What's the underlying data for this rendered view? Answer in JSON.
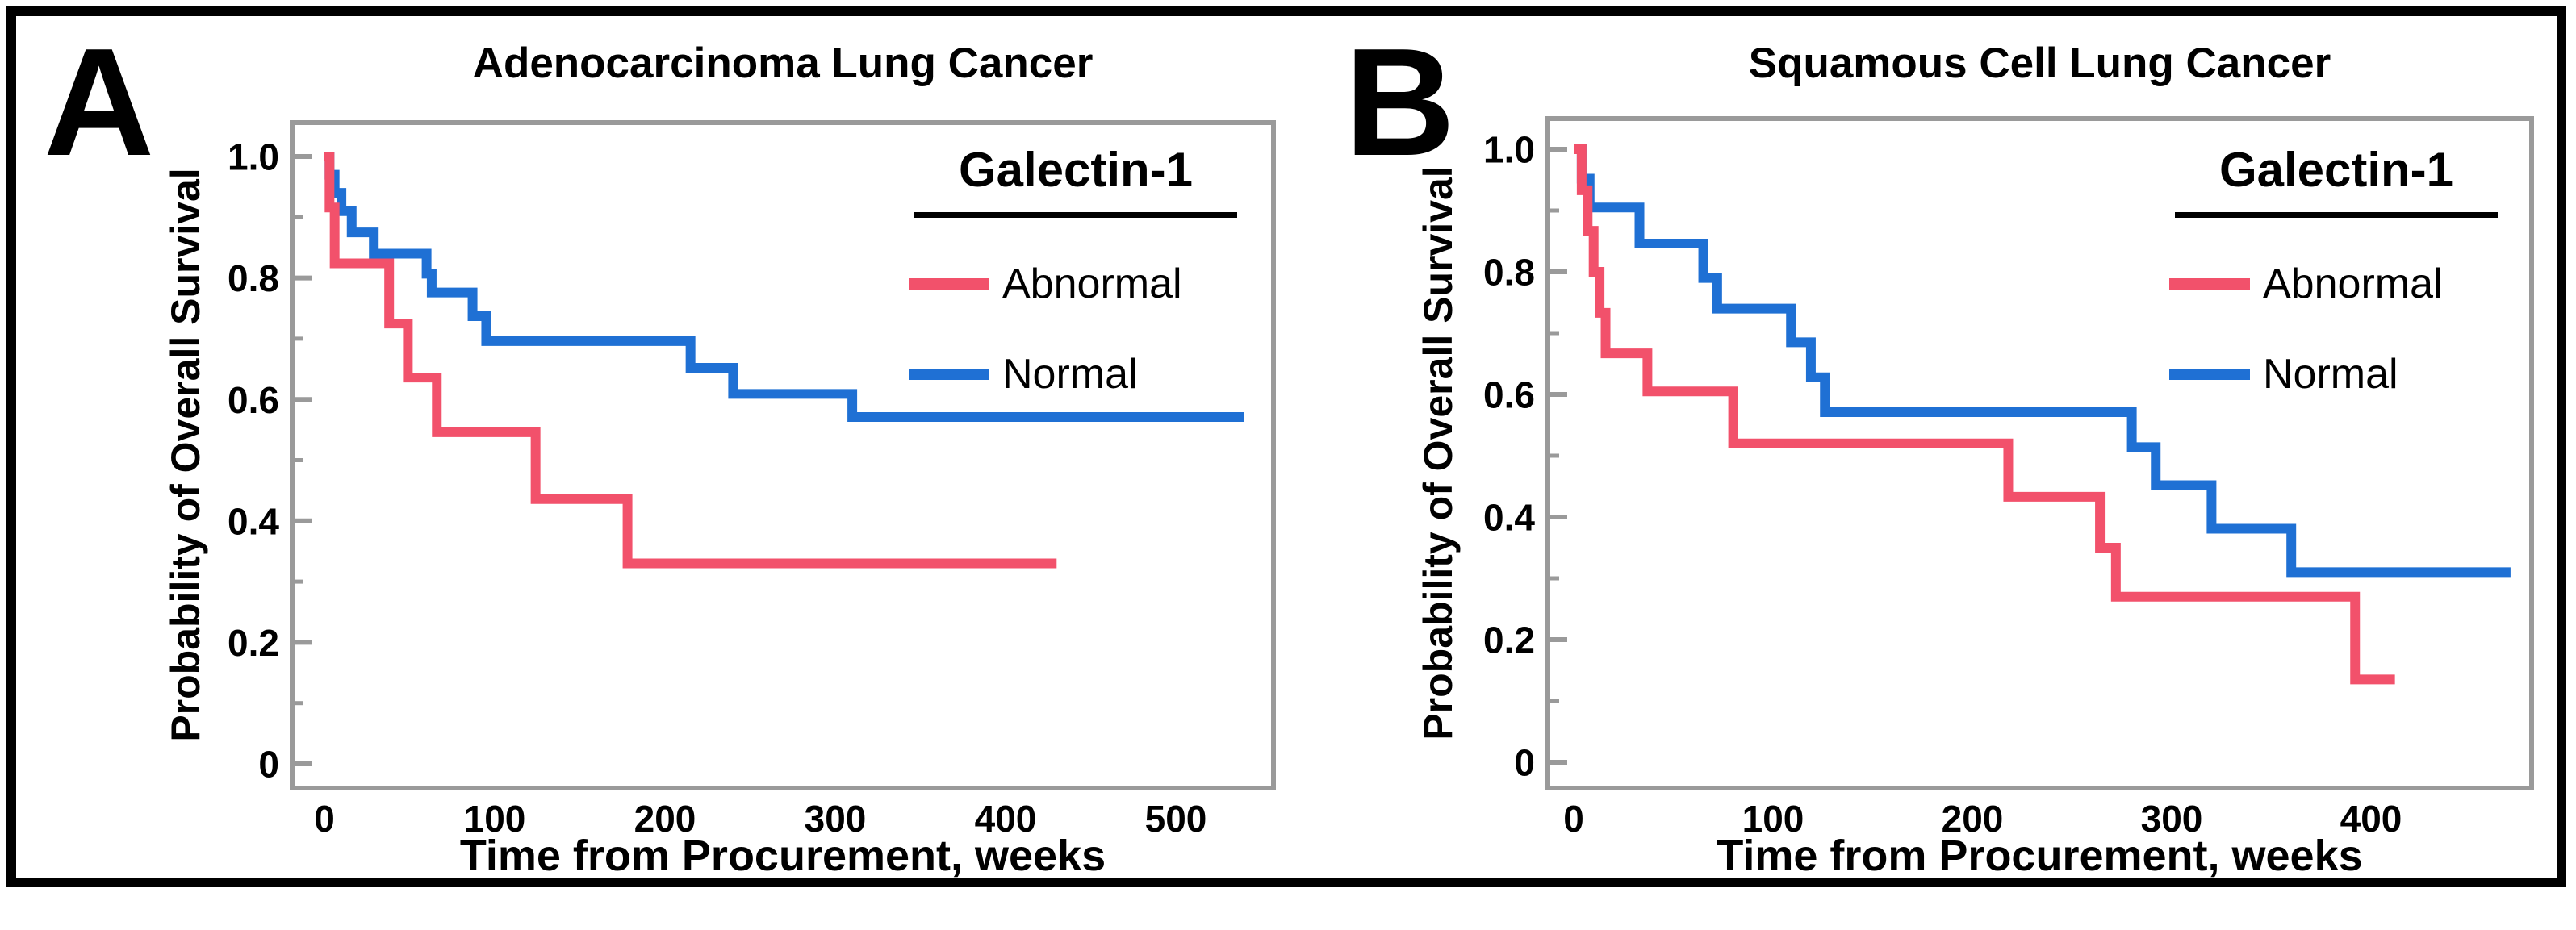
{
  "figure": {
    "colors": {
      "abnormal": "#F2516B",
      "normal": "#1F70D4",
      "frame": "#9A9A9A",
      "text": "#000000"
    }
  },
  "panels": [
    {
      "letter": "A",
      "title": "Adenocarcinoma Lung Cancer",
      "x_axis": {
        "label": "Time from Procurement, weeks"
      },
      "y_axis": {
        "label": "Probability of Overall Survival"
      },
      "legend": {
        "title": "Galectin-1",
        "items": [
          {
            "label": "Abnormal",
            "color_key": "abnormal"
          },
          {
            "label": "Normal",
            "color_key": "normal"
          }
        ]
      }
    },
    {
      "letter": "B",
      "title": "Squamous Cell Lung Cancer",
      "x_axis": {
        "label": "Time from Procurement, weeks"
      },
      "y_axis": {
        "label": "Probability of Overall Survival"
      },
      "legend": {
        "title": "Galectin-1",
        "items": [
          {
            "label": "Abnormal",
            "color_key": "abnormal"
          },
          {
            "label": "Normal",
            "color_key": "normal"
          }
        ]
      }
    }
  ],
  "chart_data": [
    {
      "type": "line",
      "subtype": "kaplan-meier-step",
      "title": "Adenocarcinoma Lung Cancer",
      "xlabel": "Time from Procurement, weeks",
      "ylabel": "Probability of Overall Survival",
      "xlim": [
        0,
        566
      ],
      "ylim": [
        -0.04,
        1.04
      ],
      "x_ticks": [
        0,
        100,
        200,
        300,
        400,
        500
      ],
      "y_ticks": [
        1.0,
        0.8,
        0.6,
        0.4,
        0.2,
        0
      ],
      "y_tick_labels": [
        "1.0",
        "0.8",
        "0.6",
        "0.4",
        "0.2",
        "0"
      ],
      "y_minor_ticks": [
        0.9,
        0.7,
        0.5,
        0.3,
        0.1
      ],
      "grid": false,
      "legend_position": "upper right",
      "series": [
        {
          "name": "Normal",
          "color_key": "normal",
          "steps": [
            [
              0,
              1.0
            ],
            [
              3,
              0.97
            ],
            [
              6,
              0.94
            ],
            [
              10,
              0.91
            ],
            [
              16,
              0.875
            ],
            [
              29,
              0.84
            ],
            [
              60,
              0.807
            ],
            [
              63,
              0.776
            ],
            [
              87,
              0.737
            ],
            [
              95,
              0.696
            ],
            [
              215,
              0.652
            ],
            [
              240,
              0.609
            ],
            [
              310,
              0.571
            ]
          ],
          "end_x": 540
        },
        {
          "name": "Abnormal",
          "color_key": "abnormal",
          "steps": [
            [
              0,
              1.0
            ],
            [
              3,
              0.916
            ],
            [
              6,
              0.824
            ],
            [
              38,
              0.725
            ],
            [
              49,
              0.636
            ],
            [
              66,
              0.546
            ],
            [
              124,
              0.436
            ],
            [
              178,
              0.33
            ]
          ],
          "end_x": 430
        }
      ]
    },
    {
      "type": "line",
      "subtype": "kaplan-meier-step",
      "title": "Squamous Cell Lung Cancer",
      "xlabel": "Time from Procurement, weeks",
      "ylabel": "Probability of Overall Survival",
      "xlim": [
        0,
        480
      ],
      "ylim": [
        -0.04,
        1.04
      ],
      "x_ticks": [
        0,
        100,
        200,
        300,
        400
      ],
      "y_ticks": [
        1.0,
        0.8,
        0.6,
        0.4,
        0.2,
        0
      ],
      "y_tick_labels": [
        "1.0",
        "0.8",
        "0.6",
        "0.4",
        "0.2",
        "0"
      ],
      "y_minor_ticks": [
        0.9,
        0.7,
        0.5,
        0.3,
        0.1
      ],
      "grid": false,
      "legend_position": "upper right",
      "series": [
        {
          "name": "Normal",
          "color_key": "normal",
          "steps": [
            [
              0,
              1.0
            ],
            [
              4,
              0.952
            ],
            [
              8,
              0.905
            ],
            [
              33,
              0.846
            ],
            [
              65,
              0.79
            ],
            [
              72,
              0.74
            ],
            [
              109,
              0.685
            ],
            [
              119,
              0.628
            ],
            [
              126,
              0.571
            ],
            [
              280,
              0.514
            ],
            [
              292,
              0.452
            ],
            [
              320,
              0.381
            ],
            [
              360,
              0.31
            ]
          ],
          "end_x": 470
        },
        {
          "name": "Abnormal",
          "color_key": "abnormal",
          "steps": [
            [
              0,
              1.0
            ],
            [
              4,
              0.933
            ],
            [
              7,
              0.867
            ],
            [
              10,
              0.8
            ],
            [
              13,
              0.733
            ],
            [
              16,
              0.667
            ],
            [
              37,
              0.605
            ],
            [
              80,
              0.52
            ],
            [
              218,
              0.433
            ],
            [
              264,
              0.35
            ],
            [
              272,
              0.27
            ],
            [
              392,
              0.135
            ]
          ],
          "end_x": 412
        }
      ]
    }
  ]
}
